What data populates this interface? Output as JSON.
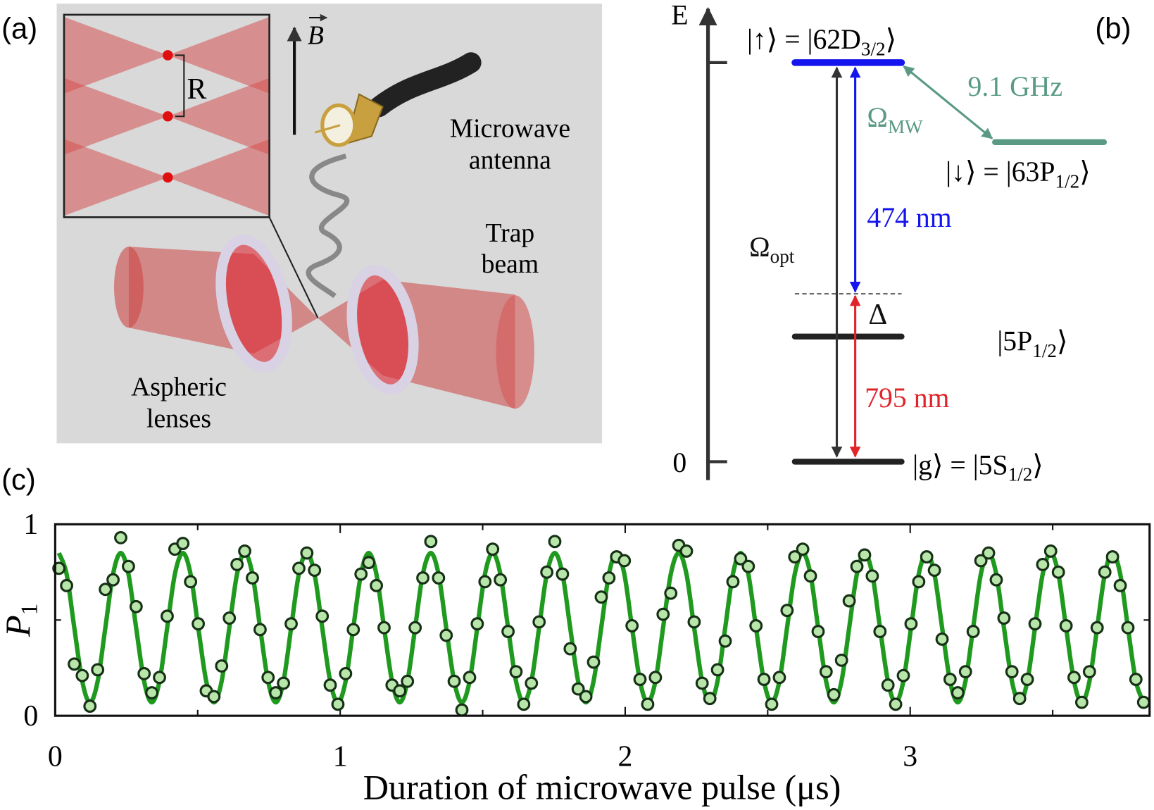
{
  "panel_a": {
    "label": "(a)",
    "field_label": "B",
    "separation_label": "R",
    "antenna_label": [
      "Microwave",
      "antenna"
    ],
    "beam_label": [
      "Trap",
      "beam"
    ],
    "lens_label": [
      "Aspheric",
      "lenses"
    ]
  },
  "panel_b": {
    "label": "(b)",
    "axis_label": "E",
    "zero_label": "0",
    "level_up": [
      "|↑⟩ = |62D",
      "3/2",
      "⟩"
    ],
    "level_down": [
      "|↓⟩ = |63P",
      "1/2",
      "⟩"
    ],
    "level_5p": [
      "|5P",
      "1/2",
      "⟩"
    ],
    "level_g": [
      "|g⟩ = |5S",
      "1/2",
      "⟩"
    ],
    "splitting": "9.1 GHz",
    "rabi_mw": [
      "Ω",
      "MW"
    ],
    "wavelength_blue": "474 nm",
    "rabi_opt": [
      "Ω",
      "opt"
    ],
    "detuning": "Δ",
    "wavelength_red": "795 nm"
  },
  "chart_data": {
    "type": "scatter",
    "panel_label": "(c)",
    "x_label": "Duration of microwave pulse (μs)",
    "y_label": [
      "P",
      "1"
    ],
    "xlim": [
      0,
      3.84
    ],
    "ylim": [
      0,
      1
    ],
    "xticks": [
      0,
      1,
      2,
      3
    ],
    "xminorticks": [
      0.5,
      1.5,
      2.5,
      3.5
    ],
    "yticks": [
      0,
      1
    ],
    "yminorticks": [
      0.5
    ],
    "x": [
      0.013,
      0.04,
      0.067,
      0.095,
      0.122,
      0.149,
      0.176,
      0.203,
      0.23,
      0.257,
      0.284,
      0.312,
      0.339,
      0.366,
      0.393,
      0.42,
      0.448,
      0.475,
      0.502,
      0.53,
      0.557,
      0.584,
      0.611,
      0.638,
      0.665,
      0.692,
      0.719,
      0.747,
      0.774,
      0.801,
      0.828,
      0.855,
      0.883,
      0.91,
      0.937,
      0.965,
      0.992,
      1.019,
      1.046,
      1.073,
      1.1,
      1.127,
      1.154,
      1.182,
      1.209,
      1.236,
      1.263,
      1.29,
      1.318,
      1.345,
      1.372,
      1.4,
      1.427,
      1.454,
      1.481,
      1.508,
      1.535,
      1.562,
      1.589,
      1.617,
      1.644,
      1.671,
      1.698,
      1.725,
      1.753,
      1.78,
      1.807,
      1.835,
      1.862,
      1.889,
      1.916,
      1.943,
      1.97,
      1.997,
      2.024,
      2.052,
      2.079,
      2.106,
      2.133,
      2.16,
      2.188,
      2.215,
      2.242,
      2.27,
      2.297,
      2.324,
      2.351,
      2.378,
      2.405,
      2.432,
      2.459,
      2.487,
      2.514,
      2.541,
      2.568,
      2.595,
      2.623,
      2.65,
      2.677,
      2.705,
      2.732,
      2.759,
      2.786,
      2.813,
      2.84,
      2.867,
      2.894,
      2.922,
      2.949,
      2.976,
      3.003,
      3.03,
      3.058,
      3.085,
      3.112,
      3.14,
      3.167,
      3.194,
      3.221,
      3.248,
      3.275,
      3.302,
      3.329,
      3.357,
      3.384,
      3.411,
      3.438,
      3.465,
      3.493,
      3.52,
      3.547,
      3.575,
      3.602,
      3.629,
      3.656,
      3.683,
      3.71,
      3.737,
      3.764,
      3.792,
      3.819
    ],
    "series": [
      {
        "type": "scatter",
        "color": "#b8e6aa",
        "edge_color": "#163016",
        "values": [
          0.77,
          0.68,
          0.27,
          0.21,
          0.05,
          0.24,
          0.66,
          0.71,
          0.93,
          0.78,
          0.57,
          0.22,
          0.12,
          0.2,
          0.52,
          0.87,
          0.9,
          0.7,
          0.48,
          0.13,
          0.1,
          0.26,
          0.51,
          0.79,
          0.86,
          0.72,
          0.45,
          0.2,
          0.12,
          0.17,
          0.48,
          0.77,
          0.85,
          0.76,
          0.52,
          0.16,
          0.06,
          0.22,
          0.45,
          0.74,
          0.8,
          0.68,
          0.46,
          0.16,
          0.13,
          0.18,
          0.46,
          0.72,
          0.91,
          0.72,
          0.42,
          0.18,
          0.03,
          0.2,
          0.48,
          0.7,
          0.87,
          0.71,
          0.44,
          0.23,
          0.06,
          0.17,
          0.49,
          0.75,
          0.91,
          0.74,
          0.35,
          0.14,
          0.1,
          0.28,
          0.62,
          0.72,
          0.83,
          0.81,
          0.47,
          0.19,
          0.06,
          0.2,
          0.53,
          0.64,
          0.89,
          0.86,
          0.49,
          0.17,
          0.09,
          0.24,
          0.39,
          0.7,
          0.82,
          0.78,
          0.47,
          0.19,
          0.06,
          0.2,
          0.55,
          0.83,
          0.87,
          0.73,
          0.44,
          0.23,
          0.11,
          0.29,
          0.6,
          0.78,
          0.84,
          0.73,
          0.44,
          0.16,
          0.06,
          0.21,
          0.48,
          0.7,
          0.83,
          0.76,
          0.4,
          0.19,
          0.12,
          0.23,
          0.44,
          0.81,
          0.85,
          0.71,
          0.51,
          0.23,
          0.09,
          0.19,
          0.48,
          0.79,
          0.86,
          0.75,
          0.47,
          0.2,
          0.07,
          0.23,
          0.46,
          0.75,
          0.83,
          0.68,
          0.46,
          0.19,
          0.07
        ]
      },
      {
        "type": "line",
        "color": "#1f9a1f",
        "values": [
          0.85,
          0.74,
          0.46,
          0.18,
          0.07,
          0.18,
          0.46,
          0.74,
          0.85,
          0.74,
          0.46,
          0.18,
          0.07,
          0.18,
          0.46,
          0.74,
          0.85,
          0.74,
          0.46,
          0.18,
          0.07,
          0.18,
          0.46,
          0.74,
          0.85,
          0.74,
          0.46,
          0.18,
          0.07,
          0.18,
          0.46,
          0.74,
          0.85,
          0.74,
          0.46,
          0.18,
          0.07,
          0.18,
          0.46,
          0.74,
          0.85,
          0.74,
          0.46,
          0.18,
          0.07,
          0.18,
          0.46,
          0.74,
          0.85,
          0.74,
          0.46,
          0.18,
          0.07,
          0.18,
          0.46,
          0.74,
          0.85,
          0.74,
          0.46,
          0.18,
          0.07,
          0.18,
          0.46,
          0.74,
          0.85,
          0.74,
          0.46,
          0.18,
          0.07,
          0.18,
          0.46,
          0.74,
          0.85,
          0.74,
          0.46,
          0.18,
          0.07,
          0.18,
          0.46,
          0.74,
          0.85,
          0.74,
          0.46,
          0.18,
          0.07,
          0.18,
          0.46,
          0.74,
          0.85,
          0.74,
          0.46,
          0.18,
          0.07,
          0.18,
          0.46,
          0.74,
          0.85,
          0.74,
          0.46,
          0.18,
          0.07,
          0.18,
          0.46,
          0.74,
          0.85,
          0.74,
          0.46,
          0.18,
          0.07,
          0.18,
          0.46,
          0.74,
          0.85,
          0.74,
          0.46,
          0.18,
          0.07,
          0.18,
          0.46,
          0.74,
          0.85,
          0.74,
          0.46,
          0.18,
          0.07,
          0.18,
          0.46,
          0.74,
          0.85,
          0.74,
          0.46,
          0.18,
          0.07,
          0.18,
          0.46,
          0.74,
          0.85,
          0.74,
          0.46,
          0.18,
          0.07
        ]
      }
    ]
  }
}
